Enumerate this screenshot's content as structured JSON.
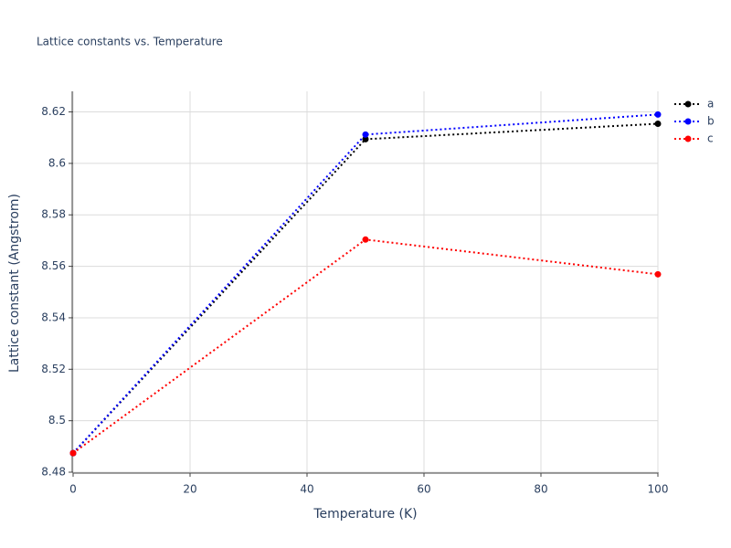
{
  "chart_data": {
    "type": "line",
    "title": "Lattice constants vs. Temperature",
    "x_label": "Temperature (K)",
    "y_label": "Lattice constant (Angstrom)",
    "x": [
      0,
      50,
      100
    ],
    "series": [
      {
        "name": "a",
        "color": "#000000",
        "values": [
          8.4874,
          8.6094,
          8.6154
        ]
      },
      {
        "name": "b",
        "color": "#0000ff",
        "values": [
          8.4874,
          8.6112,
          8.619
        ]
      },
      {
        "name": "c",
        "color": "#ff0000",
        "values": [
          8.4874,
          8.5704,
          8.5569
        ]
      }
    ],
    "xlim": [
      0,
      100
    ],
    "xticks": [
      0,
      20,
      40,
      60,
      80,
      100
    ],
    "ylim": [
      8.48,
      8.628
    ],
    "yticks": [
      8.48,
      8.5,
      8.52,
      8.54,
      8.56,
      8.58,
      8.6,
      8.62
    ],
    "grid": true,
    "legend": "top-right"
  }
}
